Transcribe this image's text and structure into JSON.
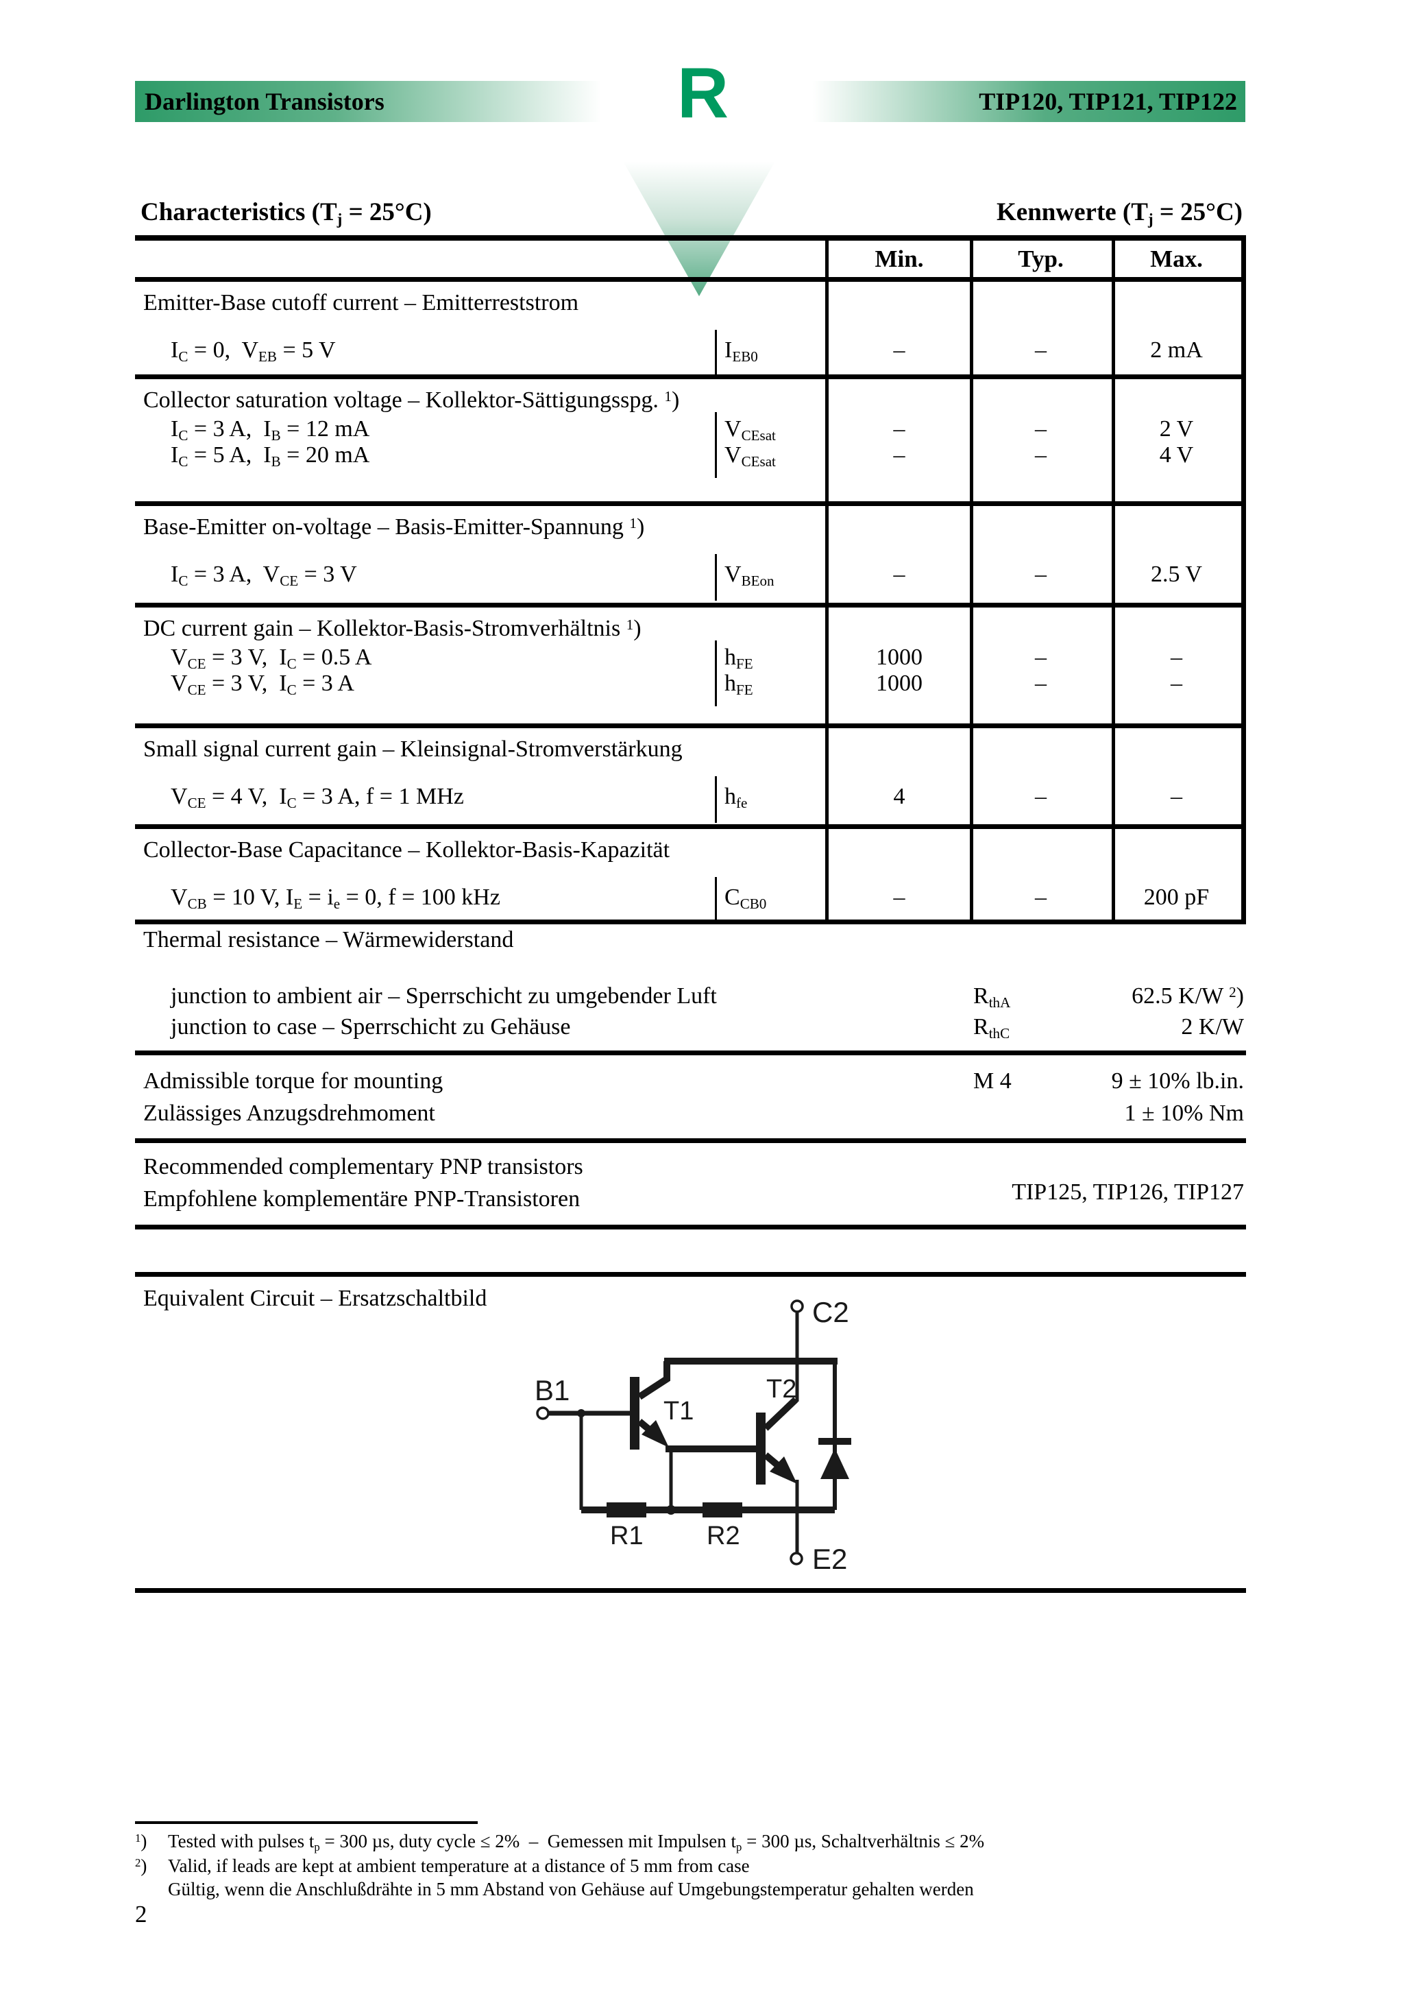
{
  "header": {
    "bar_left": "Darlington Transistors",
    "bar_right": "TIP120, TIP121, TIP122",
    "logo_letter": "R",
    "bar_green": "#2E9B68",
    "logo_green": "#009A5F"
  },
  "headings": {
    "characteristics": "Characteristics (T~j~ = 25°C)",
    "kennwerte": "Kennwerte (T~j~ = 25°C)"
  },
  "table": {
    "columns": {
      "min": "Min.",
      "typ": "Typ.",
      "max": "Max."
    },
    "sections": [
      {
        "title": "Emitter-Base cutoff current – Emitterreststrom",
        "rows": [
          {
            "cond": "I~C~ = 0,  V~EB~ = 5 V",
            "sym": "I~EB0~",
            "min": "–",
            "typ": "–",
            "max": "2 mA"
          }
        ]
      },
      {
        "title": "Collector saturation voltage – Kollektor-Sättigungsspg. ^1^)",
        "rows": [
          {
            "cond": "I~C~ = 3 A,  I~B~ = 12 mA",
            "sym": "V~CEsat~",
            "min": "–",
            "typ": "–",
            "max": "2 V"
          },
          {
            "cond": "I~C~ = 5 A,  I~B~ = 20 mA",
            "sym": "V~CEsat~",
            "min": "–",
            "typ": "–",
            "max": "4 V"
          }
        ]
      },
      {
        "title": "Base-Emitter on-voltage – Basis-Emitter-Spannung ^1^)",
        "rows": [
          {
            "cond": "I~C~ = 3 A,  V~CE~ = 3 V",
            "sym": "V~BEon~",
            "min": "–",
            "typ": "–",
            "max": "2.5 V"
          }
        ]
      },
      {
        "title": "DC current gain – Kollektor-Basis-Stromverhältnis ^1^)",
        "rows": [
          {
            "cond": "V~CE~ = 3 V,  I~C~ = 0.5 A",
            "sym": "h~FE~",
            "min": "1000",
            "typ": "–",
            "max": "–"
          },
          {
            "cond": "V~CE~ = 3 V,  I~C~ = 3 A",
            "sym": "h~FE~",
            "min": "1000",
            "typ": "–",
            "max": "–"
          }
        ]
      },
      {
        "title": "Small signal current gain – Kleinsignal-Stromverstärkung",
        "rows": [
          {
            "cond": "V~CE~ = 4 V,  I~C~ = 3 A, f = 1 MHz",
            "sym": "h~fe~",
            "min": "4",
            "typ": "–",
            "max": "–"
          }
        ]
      },
      {
        "title": "Collector-Base Capacitance – Kollektor-Basis-Kapazität",
        "rows": [
          {
            "cond": "V~CB~ = 10 V, I~E~ = i~e~ = 0, f = 100 kHz",
            "sym": "C~CB0~",
            "min": "–",
            "typ": "–",
            "max": "200 pF"
          }
        ]
      }
    ]
  },
  "thermal": {
    "title": "Thermal resistance – Wärmewiderstand",
    "rows": [
      {
        "label": "junction to ambient air – Sperrschicht zu umgebender Luft",
        "sym": "R~thA~",
        "value": "62.5 K/W ^2^)"
      },
      {
        "label": "junction to case – Sperrschicht zu Gehäuse",
        "sym": "R~thC~",
        "value": "2 K/W"
      }
    ]
  },
  "torque": {
    "line1": "Admissible torque for mounting",
    "line2": "Zulässiges Anzugsdrehmoment",
    "sym": "M 4",
    "value1": "9 ± 10% lb.in.",
    "value2": "1 ± 10% Nm"
  },
  "pnp": {
    "line1": "Recommended complementary PNP transistors",
    "line2": "Empfohlene komplementäre PNP-Transistoren",
    "value": "TIP125, TIP126, TIP127"
  },
  "circuit": {
    "heading": "Equivalent Circuit – Ersatzschaltbild",
    "labels": {
      "c2": "C2",
      "b1": "B1",
      "t1": "T1",
      "t2": "T2",
      "r1": "R1",
      "r2": "R2",
      "e2": "E2"
    }
  },
  "footnotes": [
    {
      "marker": "1",
      "text": "Tested with pulses t~p~ = 300 µs, duty cycle ≤ 2%  –  Gemessen mit Impulsen t~p~ = 300 µs, Schaltverhältnis ≤ 2%"
    },
    {
      "marker": "2",
      "text": "Valid, if leads are kept at ambient temperature at a distance of 5 mm from case"
    },
    {
      "marker": "",
      "text": "Gültig, wenn die Anschlußdrähte in 5 mm Abstand von Gehäuse auf Umgebungstemperatur gehalten werden"
    }
  ],
  "page_number": "2"
}
